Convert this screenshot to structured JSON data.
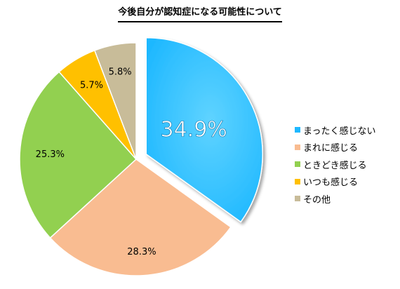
{
  "chart_data": {
    "type": "pie",
    "title": "今後自分が認知症になる可能性について",
    "categories": [
      "まったく感じない",
      "まれに感じる",
      "ときどき感じる",
      "いつも感じる",
      "その他"
    ],
    "values": [
      34.9,
      28.3,
      25.3,
      5.7,
      5.8
    ],
    "value_labels": [
      "34.9%",
      "28.3%",
      "25.3%",
      "5.7%",
      "5.8%"
    ],
    "colors": [
      "#1EB8FF",
      "#F9BC91",
      "#92D050",
      "#FFC000",
      "#C8BC99"
    ],
    "exploded_slice": "まったく感じない",
    "legend": {
      "position": "right"
    }
  }
}
